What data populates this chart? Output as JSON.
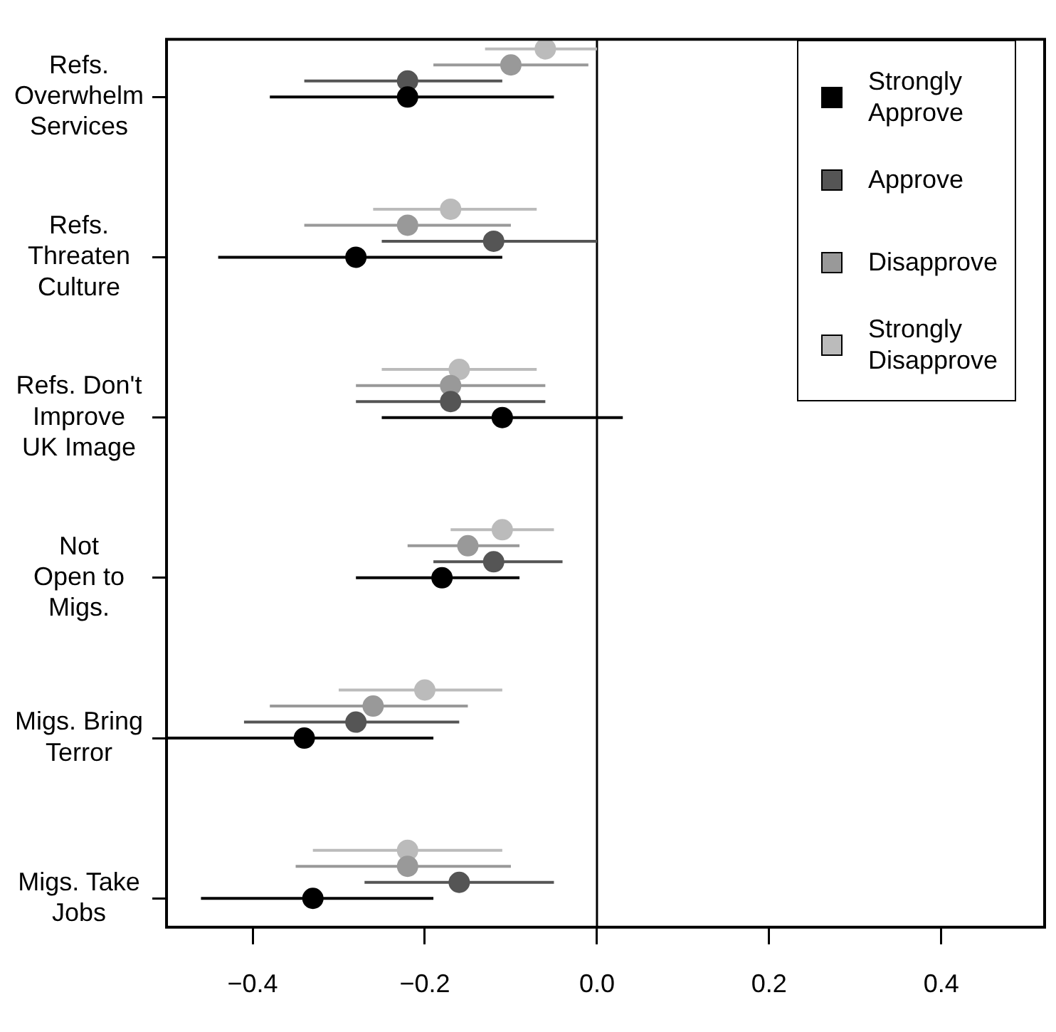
{
  "chart_data": {
    "type": "scatter",
    "orientation": "horizontal",
    "categories": [
      "Refs.\nOverwhelm\nServices",
      "Refs.\nThreaten\nCulture",
      "Refs. Don't\nImprove\nUK Image",
      "Not\nOpen to\nMigs.",
      "Migs. Bring\nTerror",
      "Migs. Take\nJobs"
    ],
    "series": [
      {
        "name": "Strongly\nApprove",
        "color": "#000000",
        "values": [
          -0.22,
          -0.28,
          -0.11,
          -0.18,
          -0.34,
          -0.33
        ],
        "errors": [
          [
            -0.38,
            -0.05
          ],
          [
            -0.44,
            -0.11
          ],
          [
            -0.25,
            0.03
          ],
          [
            -0.28,
            -0.09
          ],
          [
            -0.5,
            -0.19
          ],
          [
            -0.46,
            -0.19
          ]
        ]
      },
      {
        "name": "Approve",
        "color": "#555555",
        "values": [
          -0.22,
          -0.12,
          -0.17,
          -0.12,
          -0.28,
          -0.16
        ],
        "errors": [
          [
            -0.34,
            -0.11
          ],
          [
            -0.25,
            0.0
          ],
          [
            -0.28,
            -0.06
          ],
          [
            -0.19,
            -0.04
          ],
          [
            -0.41,
            -0.16
          ],
          [
            -0.27,
            -0.05
          ]
        ]
      },
      {
        "name": "Disapprove",
        "color": "#999999",
        "values": [
          -0.1,
          -0.22,
          -0.17,
          -0.15,
          -0.26,
          -0.22
        ],
        "errors": [
          [
            -0.19,
            -0.01
          ],
          [
            -0.34,
            -0.1
          ],
          [
            -0.28,
            -0.06
          ],
          [
            -0.22,
            -0.09
          ],
          [
            -0.38,
            -0.15
          ],
          [
            -0.35,
            -0.1
          ]
        ]
      },
      {
        "name": "Strongly\nDisapprove",
        "color": "#bbbbbb",
        "values": [
          -0.06,
          -0.17,
          -0.16,
          -0.11,
          -0.2,
          -0.22
        ],
        "errors": [
          [
            -0.13,
            0.0
          ],
          [
            -0.26,
            -0.07
          ],
          [
            -0.25,
            -0.07
          ],
          [
            -0.17,
            -0.05
          ],
          [
            -0.3,
            -0.11
          ],
          [
            -0.33,
            -0.11
          ]
        ]
      }
    ],
    "xlim": [
      -0.5,
      0.52
    ],
    "xticks": [
      {
        "value": -0.4,
        "label": "−0.4"
      },
      {
        "value": -0.2,
        "label": "−0.2"
      },
      {
        "value": 0,
        "label": "0.0"
      },
      {
        "value": 0.2,
        "label": "0.2"
      },
      {
        "value": 0.4,
        "label": "0.4"
      }
    ],
    "ref_lines": [
      {
        "axis": "x",
        "value": 0
      }
    ],
    "marker": "circle",
    "grid": false,
    "legend": "top right"
  }
}
